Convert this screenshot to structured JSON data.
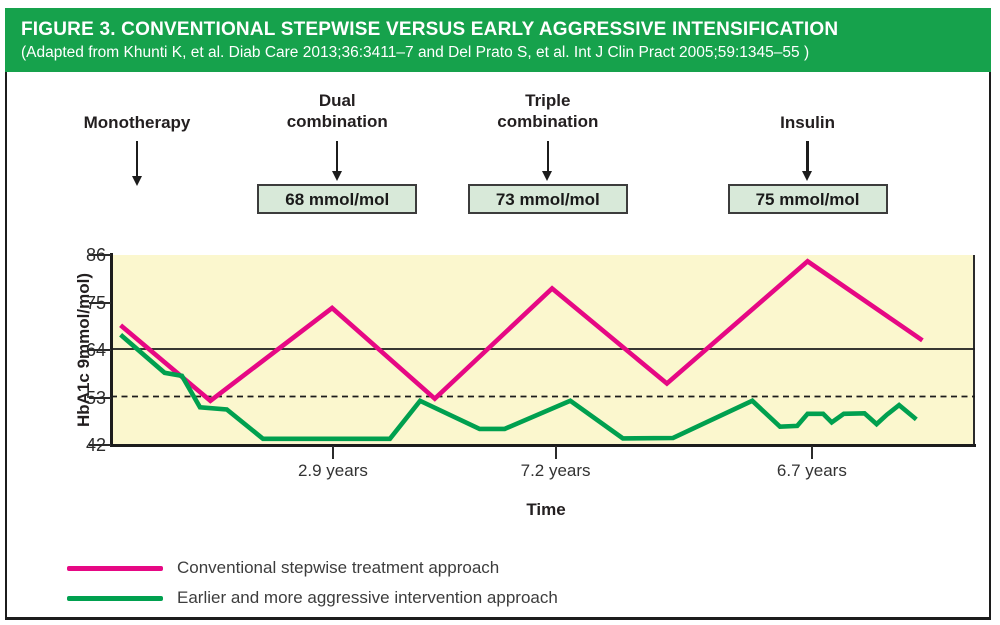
{
  "header": {
    "title": "FIGURE 3. CONVENTIONAL STEPWISE VERSUS EARLY AGGRESSIVE INTENSIFICATION",
    "source": "(Adapted from Khunti K, et al. Diab Care 2013;36:3411–7 and Del Prato S, et al. Int J Clin Pract 2005;59:1345–55 )"
  },
  "colors": {
    "header_green": "#16a24c",
    "box_fill": "#d8e9d9",
    "box_border": "#3c3c3c",
    "plot_background": "#fbf7ce",
    "conventional_pink": "#e60884",
    "aggressive_green": "#00a04f",
    "axis_black": "#1c1c1c"
  },
  "treatment_stages": [
    {
      "lines": [
        "Monotherapy"
      ],
      "box": null,
      "fx": 0.029
    },
    {
      "lines": [
        "Dual",
        "combination"
      ],
      "box": "68 mmol/mol",
      "fx": 0.261
    },
    {
      "lines": [
        "Triple",
        "combination"
      ],
      "box": "73 mmol/mol",
      "fx": 0.505
    },
    {
      "lines": [
        "Insulin"
      ],
      "box": "75 mmol/mol",
      "fx": 0.806
    }
  ],
  "chart_data": {
    "type": "line",
    "ylabel": "HbA1c 9mmol/mol)",
    "xlabel": "Time",
    "ylim": [
      42,
      86
    ],
    "yticks": [
      86,
      75,
      64,
      53,
      42
    ],
    "grid": false,
    "reference_lines": [
      {
        "value": 64,
        "style": "solid"
      },
      {
        "value": 53,
        "style": "dashed"
      }
    ],
    "x_tick_labels": [
      {
        "label": "2.9 years",
        "fx": 0.256
      },
      {
        "label": "7.2 years",
        "fx": 0.514
      },
      {
        "label": "6.7 years",
        "fx": 0.811
      }
    ],
    "legend_position": "bottom-left",
    "series": [
      {
        "name": "Conventional stepwise treatment approach",
        "color": "#e60884",
        "points": [
          [
            0.01,
            69.5
          ],
          [
            0.114,
            52.0
          ],
          [
            0.255,
            73.5
          ],
          [
            0.374,
            52.5
          ],
          [
            0.51,
            78.0
          ],
          [
            0.643,
            56.0
          ],
          [
            0.806,
            84.3
          ],
          [
            0.939,
            66.0
          ]
        ]
      },
      {
        "name": "Earlier and more aggressive intervention approach",
        "color": "#00a04f",
        "points": [
          [
            0.01,
            67.3
          ],
          [
            0.061,
            58.5
          ],
          [
            0.081,
            57.8
          ],
          [
            0.102,
            50.5
          ],
          [
            0.133,
            50.0
          ],
          [
            0.175,
            43.2
          ],
          [
            0.322,
            43.2
          ],
          [
            0.357,
            52.0
          ],
          [
            0.426,
            45.5
          ],
          [
            0.455,
            45.5
          ],
          [
            0.531,
            52.0
          ],
          [
            0.592,
            43.3
          ],
          [
            0.65,
            43.4
          ],
          [
            0.742,
            52.0
          ],
          [
            0.774,
            46.0
          ],
          [
            0.794,
            46.2
          ],
          [
            0.806,
            49.0
          ],
          [
            0.824,
            49.0
          ],
          [
            0.834,
            47.0
          ],
          [
            0.848,
            49.0
          ],
          [
            0.872,
            49.1
          ],
          [
            0.886,
            46.6
          ],
          [
            0.898,
            48.8
          ],
          [
            0.912,
            51.0
          ],
          [
            0.932,
            47.7
          ]
        ]
      }
    ]
  }
}
